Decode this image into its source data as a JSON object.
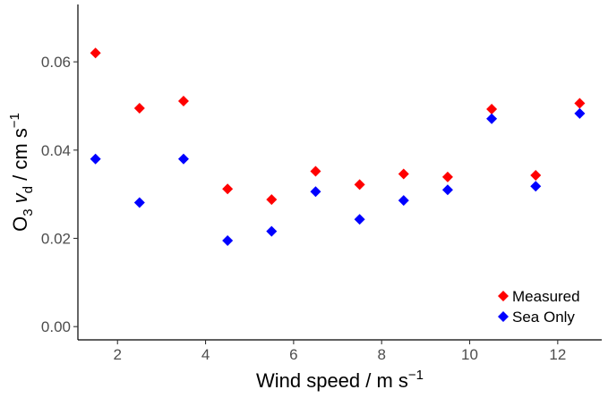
{
  "chart_data": {
    "type": "scatter",
    "title": "",
    "x": [
      1.5,
      2.5,
      3.5,
      4.5,
      5.5,
      6.5,
      7.5,
      8.5,
      9.5,
      10.5,
      11.5,
      12.5
    ],
    "series": [
      {
        "name": "Measured",
        "color": "#ff0000",
        "values": [
          0.062,
          0.0495,
          0.0511,
          0.0312,
          0.0288,
          0.0352,
          0.0322,
          0.0346,
          0.0339,
          0.0493,
          0.0343,
          0.0506
        ]
      },
      {
        "name": "Sea Only",
        "color": "#0000ff",
        "values": [
          0.038,
          0.0281,
          0.038,
          0.0195,
          0.0216,
          0.0306,
          0.0243,
          0.0286,
          0.031,
          0.0471,
          0.0318,
          0.0483
        ]
      }
    ],
    "xlabel": {
      "text": "Wind speed / m s",
      "sup": "−1"
    },
    "ylabel": {
      "o": "O",
      "o_sub": "3",
      "v": "v",
      "v_sub": "d",
      "unit": " / cm s",
      "unit_sup": "−1"
    },
    "xlim": [
      1.1,
      13.0
    ],
    "ylim": [
      -0.003,
      0.073
    ],
    "xticks": [
      2,
      4,
      6,
      8,
      10,
      12
    ],
    "xtick_labels": [
      "2",
      "4",
      "6",
      "8",
      "10",
      "12"
    ],
    "yticks": [
      0.0,
      0.02,
      0.04,
      0.06
    ],
    "ytick_labels": [
      "0.00",
      "0.02",
      "0.04",
      "0.06"
    ],
    "grid": false,
    "legend_position": "bottom-right",
    "marker": "diamond"
  }
}
